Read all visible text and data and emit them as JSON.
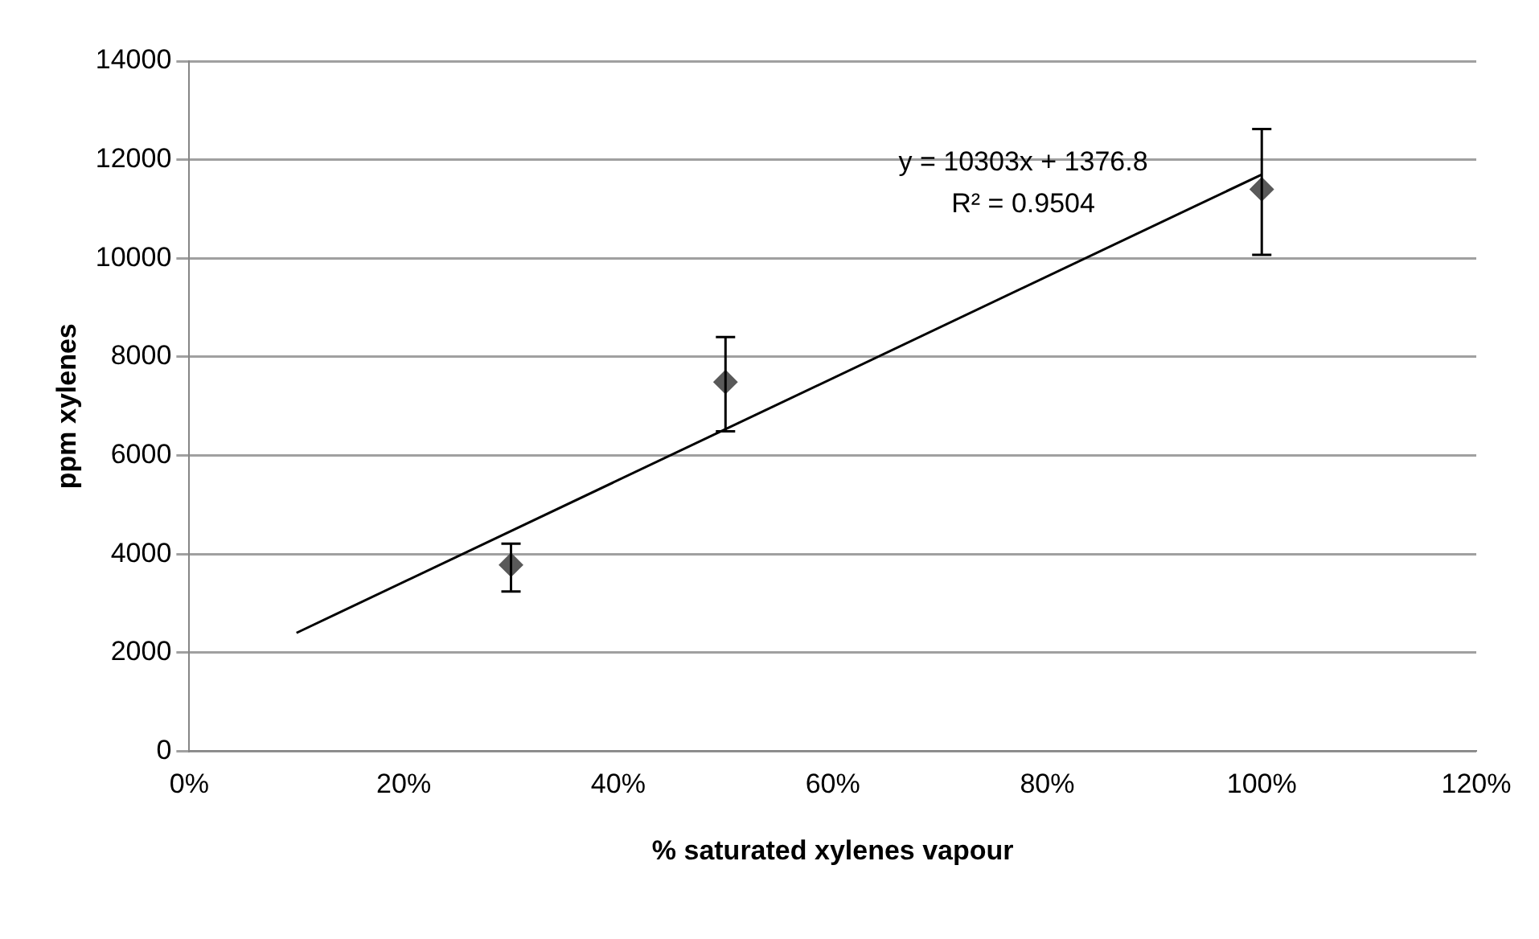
{
  "chart_data": {
    "type": "scatter",
    "xlabel": "% saturated xylenes vapour",
    "ylabel": "ppm xylenes",
    "series": [
      {
        "type": "scatter",
        "color": "#595959",
        "x": [
          0.3,
          0.5,
          1.0
        ],
        "values": [
          3780,
          7490,
          11400
        ],
        "errors": [
          [
            3240,
            4210
          ],
          [
            6490,
            8400
          ],
          [
            10070,
            12620
          ]
        ],
        "marker": "diamond"
      },
      {
        "type": "line",
        "color": "#000000",
        "x": [
          0.1,
          1.0
        ],
        "values": [
          2400,
          11700
        ],
        "marker": "none",
        "line_style": "solid"
      }
    ],
    "annotations": [
      "y = 10303x + 1376.8",
      "R² = 0.9504"
    ],
    "xlim": [
      0,
      1.2
    ],
    "xticks": [
      {
        "value": 0,
        "label": "0%"
      },
      {
        "value": 0.2,
        "label": "20%"
      },
      {
        "value": 0.4,
        "label": "40%"
      },
      {
        "value": 0.6,
        "label": "60%"
      },
      {
        "value": 0.8,
        "label": "80%"
      },
      {
        "value": 1.0,
        "label": "100%"
      },
      {
        "value": 1.2,
        "label": "120%"
      }
    ],
    "ylim": [
      0,
      14000
    ],
    "yticks": [
      0,
      2000,
      4000,
      6000,
      8000,
      10000,
      12000,
      14000
    ],
    "grid": "y",
    "legend": false
  }
}
